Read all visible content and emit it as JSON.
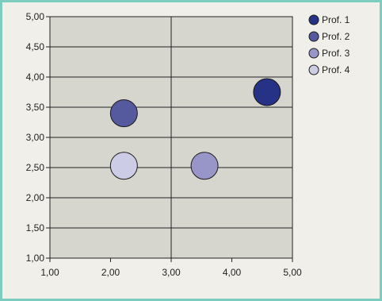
{
  "chart_data": {
    "type": "scatter",
    "title": "",
    "xlabel": "",
    "ylabel": "",
    "xlim": [
      1.0,
      5.0
    ],
    "ylim": [
      1.0,
      5.0
    ],
    "x_ticks": [
      "1,00",
      "2,00",
      "3,00",
      "4,00",
      "5,00"
    ],
    "y_ticks": [
      "1,00",
      "1,50",
      "2,00",
      "2,50",
      "3,00",
      "3,50",
      "4,00",
      "4,50",
      "5,00"
    ],
    "legend_position": "right",
    "grid": "horizontal lines at each y tick, one vertical line at x = 3,00",
    "series": [
      {
        "name": "Prof. 1",
        "color": "#263285",
        "points": [
          {
            "x": 4.58,
            "y": 3.75
          }
        ]
      },
      {
        "name": "Prof. 2",
        "color": "#55599e",
        "points": [
          {
            "x": 2.22,
            "y": 3.4
          }
        ]
      },
      {
        "name": "Prof. 3",
        "color": "#9896c8",
        "points": [
          {
            "x": 3.55,
            "y": 2.53
          }
        ]
      },
      {
        "name": "Prof. 4",
        "color": "#cdcce6",
        "points": [
          {
            "x": 2.22,
            "y": 2.53
          }
        ]
      }
    ],
    "plot_background": "#d7d6ce",
    "frame_color": "#7ccdc0"
  }
}
